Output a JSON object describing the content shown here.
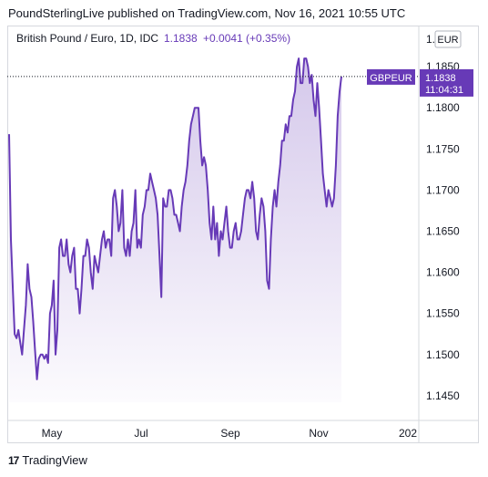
{
  "header": {
    "published_text": "PoundSterlingLive published on TradingView.com, Nov 16, 2021 10:55 UTC"
  },
  "footer": {
    "brand": "TradingView",
    "logo_glyph": "17"
  },
  "colors": {
    "line": "#673ab7",
    "label_bg": "#673ab7",
    "area_top": "#673ab7",
    "text_dark": "#131722",
    "axis_border": "#d6d8de",
    "title_text": "#131722",
    "title_price": "#673ab7"
  },
  "chart_data": {
    "type": "area",
    "title": "British Pound / Euro, 1D, IDC",
    "last_price": "1.1838",
    "change": "+0.0041 (+0.35%)",
    "currency": "EUR",
    "price_label": {
      "symbol": "GBPEUR",
      "value": "1.1838",
      "countdown": "11:04:31"
    },
    "ylim": [
      1.142,
      1.19
    ],
    "y_ticks": [
      "1.1450",
      "1.1500",
      "1.1550",
      "1.1600",
      "1.1650",
      "1.1700",
      "1.1750",
      "1.1800",
      "1.1850"
    ],
    "y_tick_top_partial": "1.",
    "x_ticks": [
      "May",
      "Jul",
      "Sep",
      "Nov",
      "202"
    ],
    "values": [
      1.1768,
      1.164,
      1.158,
      1.1525,
      1.152,
      1.153,
      1.1515,
      1.15,
      1.153,
      1.156,
      1.161,
      1.158,
      1.157,
      1.154,
      1.1505,
      1.147,
      1.1495,
      1.15,
      1.15,
      1.1495,
      1.15,
      1.149,
      1.155,
      1.156,
      1.159,
      1.15,
      1.153,
      1.163,
      1.164,
      1.162,
      1.162,
      1.164,
      1.161,
      1.16,
      1.162,
      1.163,
      1.158,
      1.158,
      1.155,
      1.158,
      1.162,
      1.162,
      1.164,
      1.163,
      1.16,
      1.158,
      1.162,
      1.161,
      1.16,
      1.162,
      1.164,
      1.165,
      1.163,
      1.164,
      1.164,
      1.162,
      1.169,
      1.17,
      1.168,
      1.165,
      1.166,
      1.17,
      1.163,
      1.162,
      1.164,
      1.162,
      1.165,
      1.166,
      1.17,
      1.163,
      1.164,
      1.163,
      1.167,
      1.168,
      1.17,
      1.17,
      1.172,
      1.171,
      1.17,
      1.169,
      1.167,
      1.162,
      1.157,
      1.169,
      1.168,
      1.168,
      1.17,
      1.17,
      1.169,
      1.167,
      1.167,
      1.166,
      1.165,
      1.168,
      1.17,
      1.171,
      1.173,
      1.176,
      1.178,
      1.179,
      1.18,
      1.18,
      1.18,
      1.176,
      1.173,
      1.174,
      1.173,
      1.17,
      1.166,
      1.164,
      1.168,
      1.164,
      1.166,
      1.162,
      1.165,
      1.164,
      1.166,
      1.168,
      1.165,
      1.163,
      1.163,
      1.165,
      1.166,
      1.164,
      1.164,
      1.165,
      1.167,
      1.169,
      1.17,
      1.17,
      1.169,
      1.171,
      1.169,
      1.165,
      1.164,
      1.167,
      1.169,
      1.168,
      1.165,
      1.159,
      1.158,
      1.164,
      1.168,
      1.17,
      1.168,
      1.171,
      1.173,
      1.176,
      1.176,
      1.178,
      1.177,
      1.179,
      1.179,
      1.181,
      1.182,
      1.185,
      1.186,
      1.183,
      1.183,
      1.186,
      1.186,
      1.185,
      1.183,
      1.184,
      1.181,
      1.179,
      1.183,
      1.18,
      1.176,
      1.172,
      1.17,
      1.168,
      1.17,
      1.169,
      1.168,
      1.169,
      1.173,
      1.179,
      1.182,
      1.1838
    ]
  }
}
